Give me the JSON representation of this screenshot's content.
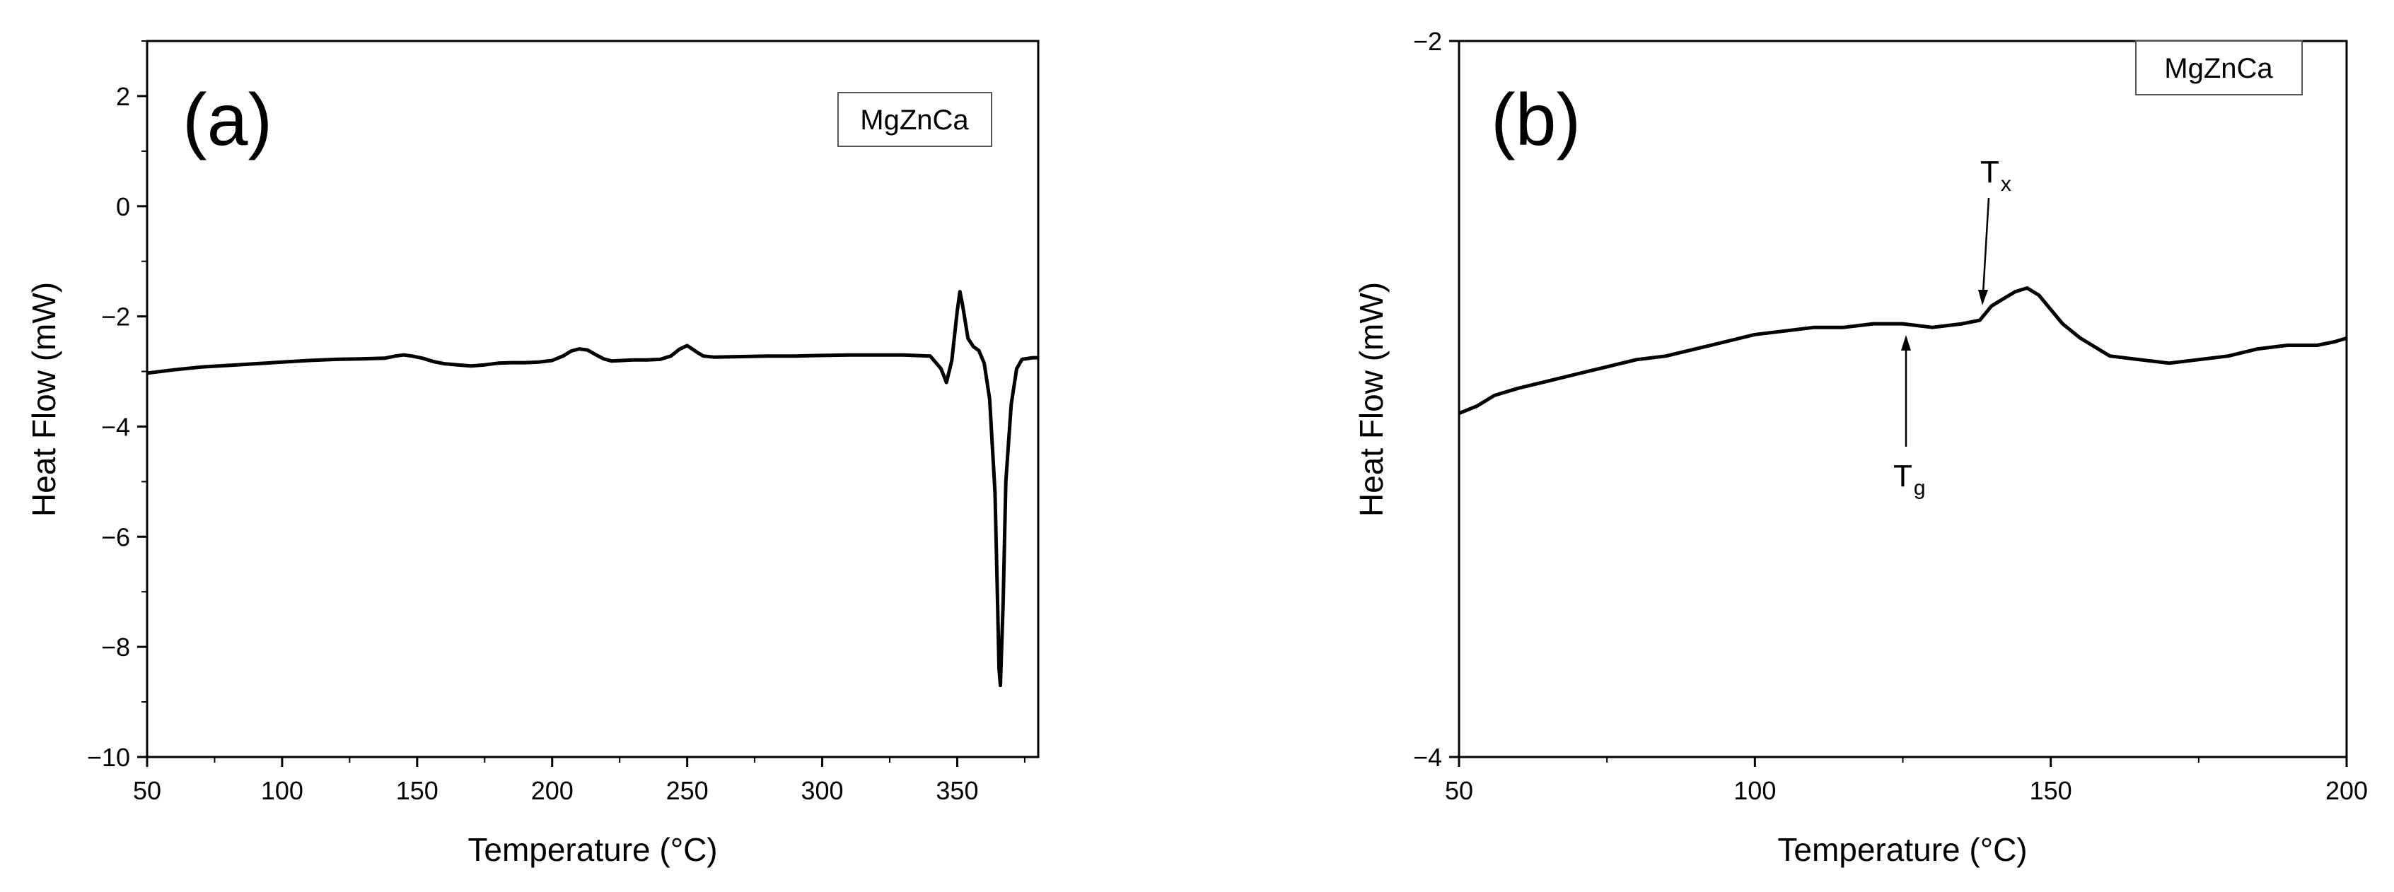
{
  "chart_data": [
    {
      "type": "line",
      "panel_label": "(a)",
      "legend": "MgZnCa",
      "xlabel": "Temperature (°C)",
      "ylabel": "Heat Flow (mW)",
      "xlim": [
        50,
        380
      ],
      "ylim": [
        -10,
        3
      ],
      "xticks": [
        50,
        100,
        150,
        200,
        250,
        300,
        350
      ],
      "yticks": [
        -10,
        -8,
        -6,
        -4,
        -2,
        0,
        2
      ],
      "series": [
        {
          "name": "MgZnCa",
          "x": [
            50,
            60,
            70,
            80,
            90,
            100,
            110,
            120,
            130,
            138,
            142,
            145,
            148,
            152,
            156,
            160,
            165,
            170,
            175,
            180,
            185,
            190,
            195,
            200,
            204,
            207,
            210,
            213,
            216,
            219,
            222,
            226,
            230,
            235,
            240,
            244,
            247,
            250,
            253,
            256,
            260,
            270,
            280,
            290,
            300,
            310,
            320,
            330,
            340,
            344,
            346,
            348,
            350,
            351,
            352,
            354,
            356,
            358,
            360,
            362,
            364,
            365,
            365.5,
            366,
            367,
            368,
            370,
            372,
            374,
            378,
            380
          ],
          "y": [
            -3.03,
            -2.97,
            -2.92,
            -2.89,
            -2.86,
            -2.83,
            -2.8,
            -2.78,
            -2.77,
            -2.76,
            -2.72,
            -2.7,
            -2.72,
            -2.76,
            -2.82,
            -2.86,
            -2.88,
            -2.9,
            -2.88,
            -2.85,
            -2.84,
            -2.84,
            -2.83,
            -2.8,
            -2.72,
            -2.63,
            -2.59,
            -2.61,
            -2.69,
            -2.77,
            -2.81,
            -2.8,
            -2.79,
            -2.79,
            -2.78,
            -2.72,
            -2.6,
            -2.53,
            -2.63,
            -2.72,
            -2.74,
            -2.73,
            -2.72,
            -2.72,
            -2.71,
            -2.7,
            -2.7,
            -2.7,
            -2.72,
            -2.95,
            -3.2,
            -2.8,
            -1.9,
            -1.55,
            -1.8,
            -2.4,
            -2.55,
            -2.62,
            -2.85,
            -3.5,
            -5.2,
            -7.3,
            -8.4,
            -8.7,
            -7.2,
            -5.0,
            -3.6,
            -2.95,
            -2.78,
            -2.75,
            -2.75
          ]
        }
      ]
    },
    {
      "type": "line",
      "panel_label": "(b)",
      "legend": "MgZnCa",
      "xlabel": "Temperature (°C)",
      "ylabel": "Heat Flow (mW)",
      "xlim": [
        50,
        200
      ],
      "ylim": [
        -4,
        -2
      ],
      "xticks": [
        50,
        100,
        150,
        200
      ],
      "yticks": [
        -4,
        -2
      ],
      "series": [
        {
          "name": "MgZnCa",
          "x": [
            50,
            53,
            56,
            60,
            65,
            70,
            75,
            80,
            85,
            90,
            95,
            100,
            105,
            110,
            115,
            120,
            125,
            130,
            135,
            138,
            140,
            142,
            144,
            146,
            148,
            150,
            152,
            155,
            158,
            160,
            165,
            170,
            175,
            180,
            185,
            190,
            195,
            198,
            200
          ],
          "y": [
            -3.04,
            -3.02,
            -2.99,
            -2.97,
            -2.95,
            -2.93,
            -2.91,
            -2.89,
            -2.88,
            -2.86,
            -2.84,
            -2.82,
            -2.81,
            -2.8,
            -2.8,
            -2.79,
            -2.79,
            -2.8,
            -2.79,
            -2.78,
            -2.74,
            -2.72,
            -2.7,
            -2.69,
            -2.71,
            -2.75,
            -2.79,
            -2.83,
            -2.86,
            -2.88,
            -2.89,
            -2.9,
            -2.89,
            -2.88,
            -2.86,
            -2.85,
            -2.85,
            -2.84,
            -2.83
          ]
        }
      ],
      "annotations": [
        {
          "label": "T",
          "subscript": "x",
          "x": 139,
          "y": -2.77,
          "direction": "down"
        },
        {
          "label": "T",
          "subscript": "g",
          "x": 126,
          "y": -2.81,
          "direction": "up"
        }
      ]
    }
  ]
}
